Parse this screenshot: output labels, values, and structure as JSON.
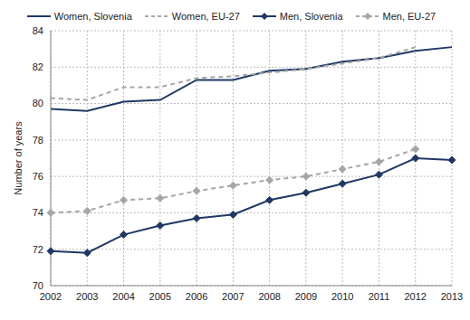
{
  "chart_data": {
    "type": "line",
    "y_label": "Number of years",
    "categories": [
      "2002",
      "2003",
      "2004",
      "2005",
      "2006",
      "2007",
      "2008",
      "2009",
      "2010",
      "2011",
      "2012",
      "2013"
    ],
    "series": [
      {
        "name": "Women, Slovenia",
        "color": "#1f3864",
        "line_style": "solid",
        "marker": "none",
        "values": [
          79.7,
          79.6,
          80.1,
          80.2,
          81.3,
          81.3,
          81.8,
          81.9,
          82.3,
          82.5,
          82.9,
          83.1
        ]
      },
      {
        "name": "Women, EU-27",
        "color": "#a6a6a6",
        "line_style": "dashed",
        "marker": "none",
        "values": [
          80.3,
          80.2,
          80.9,
          80.9,
          81.4,
          81.5,
          81.7,
          81.9,
          82.2,
          82.5,
          83.1,
          null
        ]
      },
      {
        "name": "Men, Slovenia",
        "color": "#1f3864",
        "line_style": "solid",
        "marker": "diamond",
        "values": [
          71.9,
          71.8,
          72.8,
          73.3,
          73.7,
          73.9,
          74.7,
          75.1,
          75.6,
          76.1,
          77.0,
          76.9
        ]
      },
      {
        "name": "Men, EU-27",
        "color": "#a6a6a6",
        "line_style": "dashed",
        "marker": "diamond",
        "values": [
          74.0,
          74.1,
          74.7,
          74.8,
          75.2,
          75.5,
          75.8,
          76.0,
          76.4,
          76.8,
          77.5,
          null
        ]
      }
    ],
    "ylim": [
      70,
      84
    ],
    "yticks": [
      70,
      72,
      74,
      76,
      78,
      80,
      82,
      84
    ],
    "grid": true,
    "legend": "top"
  }
}
